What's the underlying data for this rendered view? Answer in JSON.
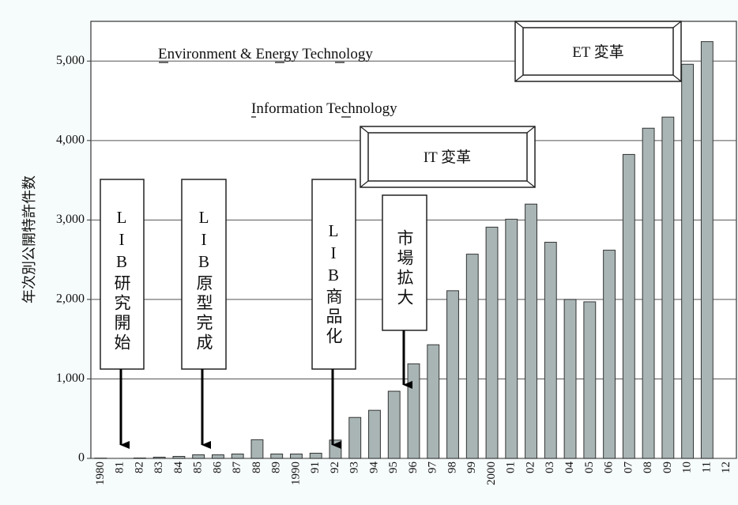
{
  "chart_data": {
    "type": "bar",
    "y_label": "年次別公開特許件数",
    "categories": [
      "1980",
      "81",
      "82",
      "83",
      "84",
      "85",
      "86",
      "87",
      "88",
      "89",
      "1990",
      "91",
      "92",
      "93",
      "94",
      "95",
      "96",
      "97",
      "98",
      "99",
      "2000",
      "01",
      "02",
      "03",
      "04",
      "05",
      "06",
      "07",
      "08",
      "09",
      "10",
      "11",
      "12"
    ],
    "values": [
      3,
      0,
      5,
      15,
      25,
      45,
      45,
      55,
      235,
      55,
      55,
      65,
      230,
      515,
      605,
      845,
      1190,
      1430,
      2110,
      2570,
      2910,
      3010,
      3200,
      2720,
      2000,
      1970,
      2620,
      3825,
      4155,
      4295,
      4960,
      5245,
      null
    ],
    "color": "#a9b5b5",
    "ylim": [
      0,
      5500
    ],
    "yticks": [
      0,
      {
        "value": 1000,
        "label": "1,000"
      },
      {
        "value": 2000,
        "label": "2,000"
      },
      {
        "value": 3000,
        "label": "3,000"
      },
      {
        "value": 4000,
        "label": "4,000"
      },
      {
        "value": 5000,
        "label": "5,000"
      }
    ],
    "grid": true,
    "annotations": [
      "Environment & Energy Technology",
      "Information Technology",
      "ET 変革",
      "IT 変革",
      "LIB研究開始",
      "LIB原型完成",
      "LIB商品化",
      "市場拡大"
    ]
  }
}
